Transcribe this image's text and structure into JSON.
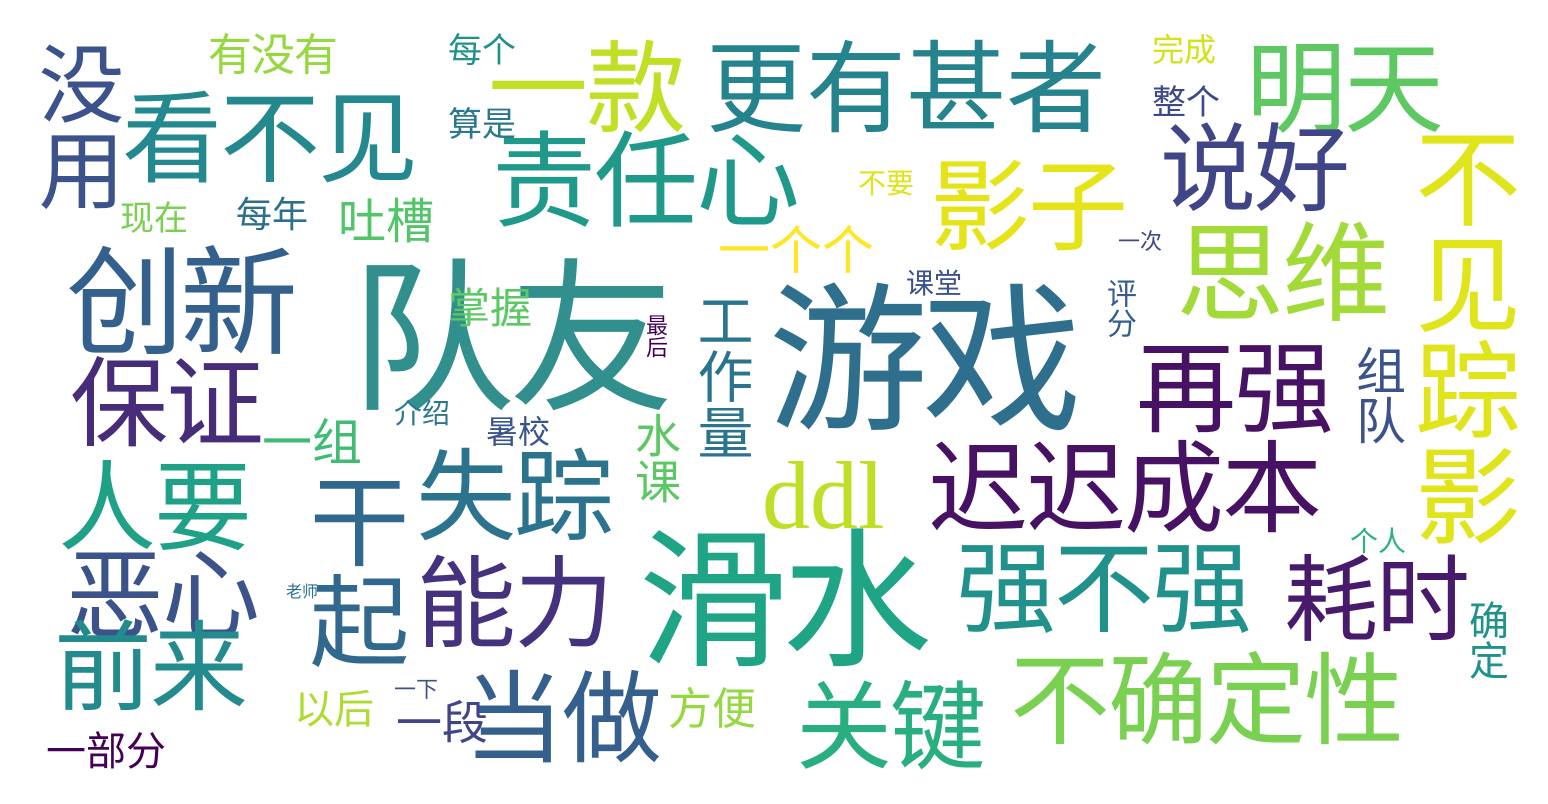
{
  "word_cloud": {
    "words": {
      "duiyou": "队友",
      "youxi": "游戏",
      "huashui": "滑水",
      "chuangxin": "创新",
      "zerenxin": "责任心",
      "kanbujian": "看不见",
      "gengyou": "更有甚者",
      "yikuan": "一款",
      "mingtian": "明天",
      "yingzi": "影子",
      "shuohao": "说好",
      "siwei": "思维",
      "zaiqiang": "再强",
      "baozheng": "保证",
      "renyao": "人要",
      "shizong": "失踪",
      "ddl": "ddl",
      "chichi": "迟迟成本",
      "exin": "恶心",
      "nengli": "能力",
      "qiangbuqiang": "强不强",
      "haoshi": "耗时",
      "qianlai": "前来",
      "dangzuo": "当做",
      "buqueding": "不确定性",
      "guanjian": "关键",
      "meiyong": "没用",
      "ganqi": "干起",
      "gongzuoliang": "工作量",
      "buyjianzong": "不见踪影",
      "shuike": "水课",
      "zudui": "组队",
      "pingfen": "评分",
      "zuihou": "最后",
      "queding": "确定",
      "youmeiyou": "有没有",
      "meige": "每个",
      "suanshi": "算是",
      "wancheng": "完成",
      "zhengge": "整个",
      "xianzai": "现在",
      "meinian": "每年",
      "tucao": "吐槽",
      "buyao": "不要",
      "yigegege": "一个个",
      "yici": "一次",
      "ketang": "课堂",
      "zhangwo": "掌握",
      "yizu": "一组",
      "jieshao": "介绍",
      "shuxiao": "暑校",
      "geren": "个人",
      "laoshi": "老师",
      "yixia": "一下",
      "yihou": "以后",
      "fangbian": "方便",
      "yiduan": "一段",
      "yibufen": "一部分"
    }
  }
}
